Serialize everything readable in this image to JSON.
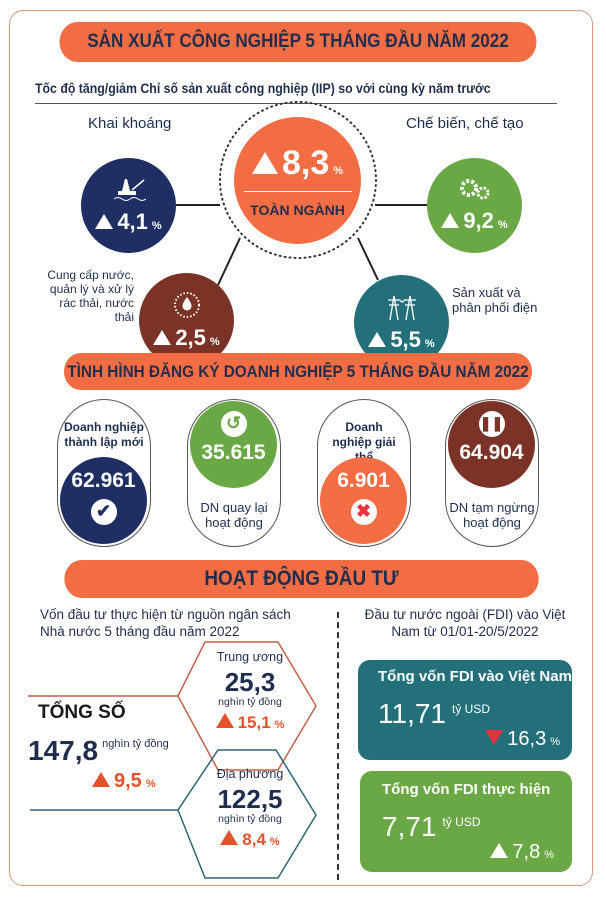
{
  "section1": {
    "title": "SẢN XUẤT CÔNG NGHIỆP 5 THÁNG ĐẦU NĂM 2022",
    "subtitle": "Tốc độ tăng/giảm Chỉ số sản xuất công nghiệp (IIP) so với cùng kỳ năm trước",
    "total": {
      "value": "8,3",
      "unit": "%",
      "label": "TOÀN NGÀNH"
    },
    "items": [
      {
        "label": "Khai khoáng",
        "value": "4,1",
        "unit": "%",
        "icon": "oil-rig-icon",
        "color": "#1f2f64"
      },
      {
        "label": "Chế biến, chế tạo",
        "value": "9,2",
        "unit": "%",
        "icon": "gears-icon",
        "color": "#6aa846"
      },
      {
        "label": "Cung cấp nước, quản lý và xử lý rác thải, nước thải",
        "value": "2,5",
        "unit": "%",
        "icon": "water-drop-icon",
        "color": "#7a3326"
      },
      {
        "label": "Sản xuất và phân phối điện",
        "value": "5,5",
        "unit": "%",
        "icon": "power-tower-icon",
        "color": "#23707a"
      }
    ]
  },
  "section2": {
    "title": "TÌNH HÌNH ĐĂNG KÝ DOANH NGHIỆP 5 THÁNG ĐẦU NĂM 2022",
    "items": [
      {
        "label": "Doanh nghiệp thành lập mới",
        "value": "62.961",
        "icon": "check-icon",
        "color": "#1f2f64"
      },
      {
        "label": "DN quay lại hoạt động",
        "value": "35.615",
        "icon": "return-icon",
        "color": "#6aa846"
      },
      {
        "label": "Doanh nghiệp giải thể",
        "value": "6.901",
        "icon": "cross-icon",
        "color": "#f26d43"
      },
      {
        "label": "DN tạm ngừng hoạt động",
        "value": "64.904",
        "icon": "pause-icon",
        "color": "#7a3326"
      }
    ]
  },
  "section3": {
    "title": "HOẠT ĐỘNG ĐẦU TƯ",
    "budget": {
      "heading": "Vốn đầu tư thực hiện từ nguồn ngân sách Nhà nước 5 tháng đầu năm 2022",
      "total_label": "TỔNG SỐ",
      "total_value": "147,8",
      "total_unit": "nghìn tỷ đồng",
      "total_change": "9,5",
      "pct": "%",
      "central": {
        "label": "Trung ương",
        "value": "25,3",
        "unit": "nghìn tỷ đồng",
        "change": "15,1"
      },
      "local": {
        "label": "Địa phương",
        "value": "122,5",
        "unit": "nghìn tỷ đồng",
        "change": "8,4"
      }
    },
    "fdi": {
      "heading": "Đầu tư nước ngoài (FDI) vào Việt Nam từ 01/01-20/5/2022",
      "registered": {
        "label": "Tổng vốn FDI vào Việt Nam",
        "value": "11,71",
        "unit": "tỷ USD",
        "change": "16,3",
        "direction": "down"
      },
      "realized": {
        "label": "Tổng vốn FDI thực hiện",
        "value": "7,71",
        "unit": "tỷ USD",
        "change": "7,8",
        "direction": "up"
      }
    }
  }
}
